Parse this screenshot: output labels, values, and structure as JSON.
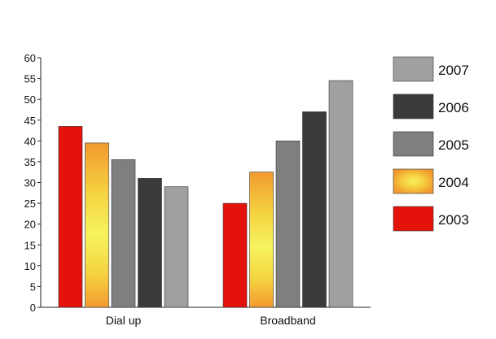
{
  "chart_data": {
    "type": "bar",
    "categories": [
      "Dial up",
      "Broadband"
    ],
    "series": [
      {
        "name": "2003",
        "values": [
          43.5,
          25
        ],
        "color": "#e3120b"
      },
      {
        "name": "2004",
        "values": [
          39.5,
          32.5
        ],
        "color": "#f29a30"
      },
      {
        "name": "2005",
        "values": [
          35.5,
          40
        ],
        "color": "#7f7f7f"
      },
      {
        "name": "2006",
        "values": [
          31,
          47
        ],
        "color": "#3a3a3a"
      },
      {
        "name": "2007",
        "values": [
          29,
          54.5
        ],
        "color": "#a0a0a0"
      }
    ],
    "title": "",
    "xlabel": "",
    "ylabel": "",
    "ylim": [
      0,
      60
    ],
    "yticks": [
      0,
      5,
      10,
      15,
      20,
      25,
      30,
      35,
      40,
      45,
      50,
      55,
      60
    ],
    "grid": false,
    "legend": {
      "placement": "right",
      "order": [
        "2007",
        "2006",
        "2005",
        "2004",
        "2003"
      ]
    }
  }
}
